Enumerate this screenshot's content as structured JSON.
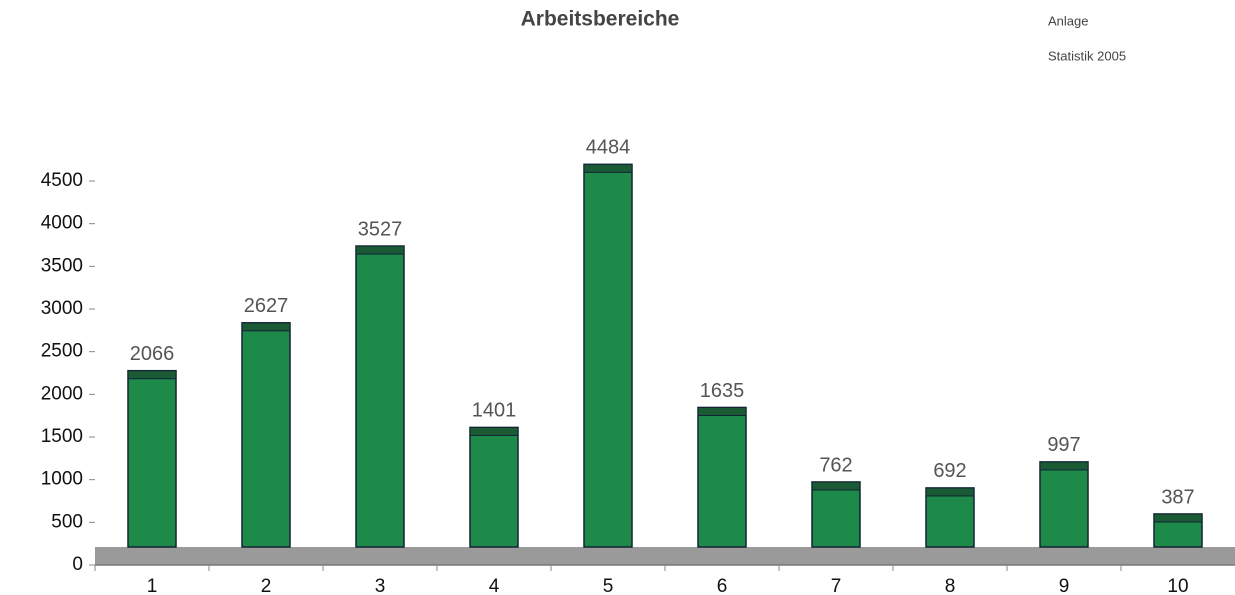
{
  "chart_data": {
    "type": "bar",
    "title": "Arbeitsbereiche",
    "annotations": [
      "Anlage",
      "Statistik 2005"
    ],
    "categories": [
      "1",
      "2",
      "3",
      "4",
      "5",
      "6",
      "7",
      "8",
      "9",
      "10"
    ],
    "values": [
      2066,
      2627,
      3527,
      1401,
      4484,
      1635,
      762,
      692,
      997,
      387
    ],
    "color": "#1e8a4a",
    "ylim": [
      0,
      4500
    ],
    "yticks": [
      0,
      500,
      1000,
      1500,
      2000,
      2500,
      3000,
      3500,
      4000,
      4500
    ],
    "grid": false
  }
}
